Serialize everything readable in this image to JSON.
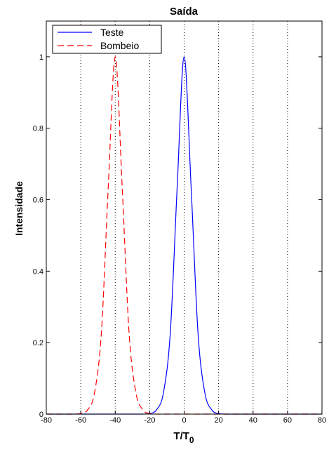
{
  "chart_data": {
    "type": "line",
    "title": "Saída",
    "xlabel": "T/T",
    "xlabel_sub": "0",
    "ylabel": "Intensidade",
    "xlim": [
      -80,
      80
    ],
    "ylim": [
      0,
      1.1
    ],
    "xticks": [
      -80,
      -60,
      -40,
      -20,
      0,
      20,
      40,
      60,
      80
    ],
    "yticks": [
      0,
      0.2,
      0.4,
      0.6,
      0.8,
      1
    ],
    "xtick_labels": [
      "-80",
      "-60",
      "-40",
      "-20",
      "0",
      "20",
      "40",
      "60",
      "80"
    ],
    "ytick_labels": [
      "0",
      "0.2",
      "0.4",
      "0.6",
      "0.8",
      "1"
    ],
    "grid": "vertical dotted lines at x = -60, -40, -20, 0, 20, 40, 60",
    "legend_position": "top-left",
    "x": [
      -80,
      -76,
      -72,
      -68,
      -64,
      -60,
      -56,
      -52,
      -48,
      -44,
      -40,
      -36,
      -32,
      -28,
      -24,
      -20,
      -16,
      -12,
      -8,
      -4,
      0,
      4,
      8,
      12,
      16,
      20,
      24,
      28,
      32,
      36,
      40,
      44,
      48,
      52,
      56,
      60,
      64,
      68,
      72,
      76,
      80
    ],
    "series": [
      {
        "name": "Teste",
        "color": "#0000ff",
        "style": "solid",
        "values": [
          0,
          0,
          0,
          0,
          0,
          0,
          0,
          0,
          0,
          0,
          0,
          0,
          0,
          0,
          0,
          0.0015,
          0.012,
          0.06,
          0.23,
          0.64,
          1.0,
          0.64,
          0.23,
          0.06,
          0.012,
          0.0015,
          0,
          0,
          0,
          0,
          0,
          0,
          0,
          0,
          0,
          0,
          0,
          0,
          0,
          0,
          0
        ]
      },
      {
        "name": "Bombeio",
        "color": "#ff0000",
        "style": "dashed",
        "values": [
          0,
          0,
          0,
          0,
          0,
          0.0015,
          0.012,
          0.06,
          0.23,
          0.64,
          1.0,
          0.64,
          0.23,
          0.06,
          0.012,
          0.0015,
          0,
          0,
          0,
          0,
          0,
          0,
          0,
          0,
          0,
          0,
          0,
          0,
          0,
          0,
          0,
          0,
          0,
          0,
          0,
          0,
          0,
          0,
          0,
          0,
          0
        ]
      }
    ]
  }
}
